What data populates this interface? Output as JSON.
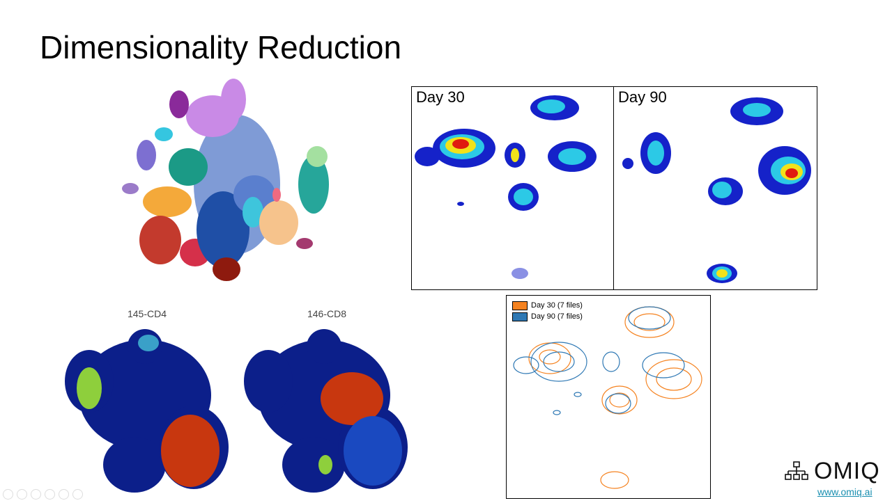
{
  "slide": {
    "title": "Dimensionality Reduction",
    "day_plots": [
      {
        "label": "Day 30"
      },
      {
        "label": "Day 90"
      }
    ],
    "marker_plots": [
      {
        "label": "145-CD4"
      },
      {
        "label": "146-CD8"
      }
    ],
    "contour_legend": [
      {
        "label": "Day 30 (7 files)",
        "color": "#f5821f"
      },
      {
        "label": "Day 90 (7 files)",
        "color": "#2e78b4"
      }
    ],
    "logo": {
      "text": "OMIQ",
      "url_text": "www.omiq.ai",
      "icon": "network-hierarchy-icon"
    },
    "player_controls": [
      "previous-icon",
      "next-icon",
      "pen-icon",
      "slides-icon",
      "zoom-icon",
      "more-icon"
    ]
  }
}
